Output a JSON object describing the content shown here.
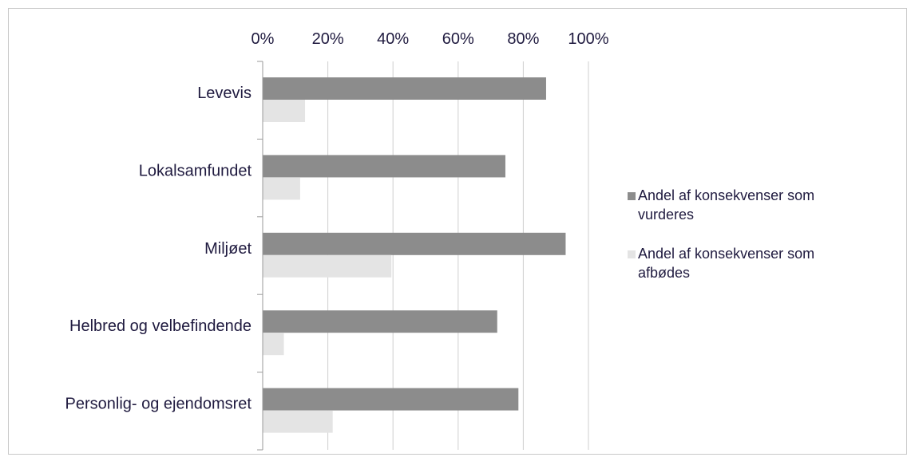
{
  "chart_data": {
    "type": "bar",
    "orientation": "horizontal",
    "categories": [
      "Levevis",
      "Lokalsamfundet",
      "Miljøet",
      "Helbred og velbefindende",
      "Personlig- og ejendomsret"
    ],
    "series": [
      {
        "name": "Andel af konsekvenser som vurderes",
        "values": [
          0.87,
          0.745,
          0.93,
          0.72,
          0.785
        ],
        "color": "#8c8c8c"
      },
      {
        "name": "Andel af konsekvenser som afbødes",
        "values": [
          0.13,
          0.115,
          0.395,
          0.065,
          0.215
        ],
        "color": "#e4e4e4"
      }
    ],
    "xlim": [
      0,
      1
    ],
    "xticks": [
      "0%",
      "20%",
      "40%",
      "60%",
      "80%",
      "100%"
    ],
    "xtick_values": [
      0,
      0.2,
      0.4,
      0.6,
      0.8,
      1.0
    ],
    "x_axis_position": "top",
    "grid": "vertical",
    "legend_position": "right",
    "title": "",
    "xlabel": "",
    "ylabel": ""
  }
}
